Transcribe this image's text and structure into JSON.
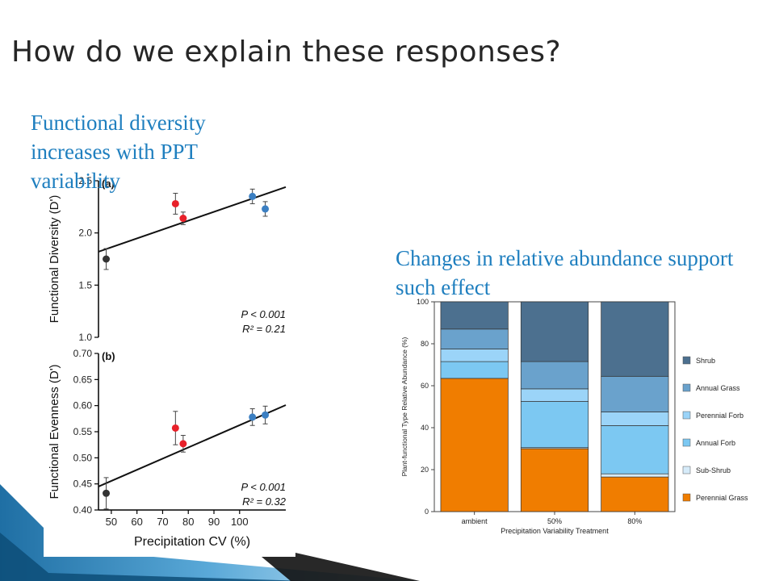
{
  "slide": {
    "title": "How do we explain these responses?",
    "left_caption": "Functional diversity increases with PPT variability",
    "right_caption": "Changes in relative abundance support such effect"
  },
  "colors": {
    "ambient": "#333333",
    "mid": "#e8212a",
    "high": "#3b7fc2",
    "accent_text": "#1f7fbf"
  },
  "chart_data": [
    {
      "type": "scatter",
      "panel": "(a)",
      "ylabel": "Functional Diversity (D')",
      "xlabel": "",
      "ylim": [
        1.0,
        2.5
      ],
      "yticks": [
        "1.0",
        "1.5",
        "2.0",
        "2.5"
      ],
      "xlim": [
        45,
        118
      ],
      "points": [
        {
          "x": 48,
          "y": 1.75,
          "err": 0.1,
          "group": "ambient"
        },
        {
          "x": 75,
          "y": 2.28,
          "err": 0.1,
          "group": "mid"
        },
        {
          "x": 78,
          "y": 2.14,
          "err": 0.06,
          "group": "mid"
        },
        {
          "x": 105,
          "y": 2.35,
          "err": 0.07,
          "group": "high"
        },
        {
          "x": 110,
          "y": 2.23,
          "err": 0.07,
          "group": "high"
        }
      ],
      "fit": [
        [
          45,
          1.82
        ],
        [
          118,
          2.44
        ]
      ],
      "stats": {
        "p": "P < 0.001",
        "r2": "R² = 0.21"
      }
    },
    {
      "type": "scatter",
      "panel": "(b)",
      "ylabel": "Functional Evenness (D')",
      "xlabel": "Precipitation CV (%)",
      "ylim": [
        0.4,
        0.7
      ],
      "yticks": [
        "0.40",
        "0.45",
        "0.50",
        "0.55",
        "0.60",
        "0.65",
        "0.70"
      ],
      "xlim": [
        45,
        118
      ],
      "xticks": [
        "50",
        "60",
        "70",
        "80",
        "90",
        "100"
      ],
      "points": [
        {
          "x": 48,
          "y": 0.432,
          "err": 0.03,
          "group": "ambient"
        },
        {
          "x": 75,
          "y": 0.557,
          "err": 0.032,
          "group": "mid"
        },
        {
          "x": 78,
          "y": 0.527,
          "err": 0.016,
          "group": "mid"
        },
        {
          "x": 105,
          "y": 0.578,
          "err": 0.016,
          "group": "high"
        },
        {
          "x": 110,
          "y": 0.582,
          "err": 0.017,
          "group": "high"
        }
      ],
      "fit": [
        [
          45,
          0.445
        ],
        [
          118,
          0.601
        ]
      ],
      "stats": {
        "p": "P < 0.001",
        "r2": "R² = 0.32"
      }
    },
    {
      "type": "bar",
      "stacked": true,
      "categories": [
        "ambient",
        "50%",
        "80%"
      ],
      "xlabel": "Precipitation Variability Treatment",
      "ylabel": "Plant-functional Type Relative Abundance (%)",
      "ylim": [
        0,
        100
      ],
      "yticks": [
        "0",
        "20",
        "40",
        "60",
        "80",
        "100"
      ],
      "legend_position": "right",
      "series": [
        {
          "name": "Perennial Grass",
          "color": "#f07d00",
          "values": [
            63.5,
            30,
            16.5
          ]
        },
        {
          "name": "Sub-Shrub",
          "color": "#d6ebf9",
          "values": [
            0,
            0.5,
            1.5
          ]
        },
        {
          "name": "Annual Forb",
          "color": "#7cc8f2",
          "values": [
            8,
            22,
            23
          ]
        },
        {
          "name": "Perennial Forb",
          "color": "#9bd4f8",
          "values": [
            6,
            6,
            6.5
          ]
        },
        {
          "name": "Annual Grass",
          "color": "#6aa2cc",
          "values": [
            9.5,
            13,
            17
          ]
        },
        {
          "name": "Shrub",
          "color": "#4c708f",
          "values": [
            13,
            28.5,
            35.5
          ]
        }
      ]
    }
  ]
}
